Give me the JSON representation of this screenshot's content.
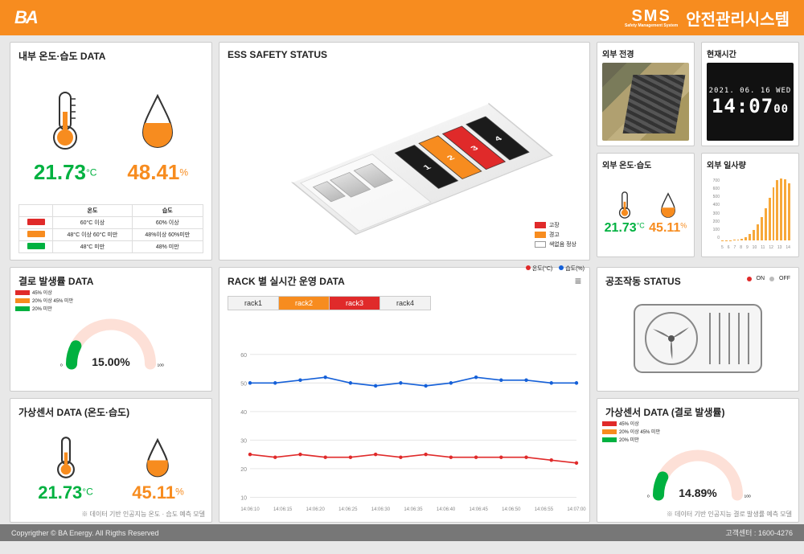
{
  "header": {
    "logo": "BA",
    "sms_big": "SMS",
    "sms_sub": "Safety Management System",
    "title": "안전관리시스템"
  },
  "footer": {
    "copyright": "Copyrigther © BA Energy. All Rigths Reserved",
    "contact_label": "고객센터 :",
    "contact_number": "1600-4276"
  },
  "palette": {
    "orange": "#f78c1f",
    "green": "#00b140",
    "red": "#e02a2a",
    "blue": "#1560d8",
    "black": "#1b1b1b",
    "grid": "#e6e6e6"
  },
  "temp_hum_panel": {
    "title": "내부 온도·습도 DATA",
    "temp_value": "21.73",
    "temp_unit": "°C",
    "hum_value": "48.41",
    "hum_unit": "%",
    "table": {
      "head_temp": "온도",
      "head_hum": "습도",
      "rows": [
        {
          "swatch": "#e02a2a",
          "temp": "60°C 이상",
          "hum": "60% 이상"
        },
        {
          "swatch": "#f78c1f",
          "temp": "48°C 이상 60°C 미만",
          "hum": "48%이상 60%미만"
        },
        {
          "swatch": "#00b140",
          "temp": "48°C 미만",
          "hum": "48% 미만"
        }
      ]
    }
  },
  "ess_panel": {
    "title": "ESS SAFETY STATUS",
    "racks": [
      {
        "n": "1",
        "color": "#1b1b1b"
      },
      {
        "n": "2",
        "color": "#f78c1f"
      },
      {
        "n": "3",
        "color": "#e02a2a"
      },
      {
        "n": "4",
        "color": "#1b1b1b"
      }
    ],
    "legend": [
      {
        "c": "#e02a2a",
        "t": "고장"
      },
      {
        "c": "#f78c1f",
        "t": "경고"
      },
      {
        "c": "#1b1b1b",
        "t": "정상",
        "prefix": "색없음"
      }
    ]
  },
  "right_top": {
    "ext_view_title": "외부 전경",
    "clock_title": "현재시간",
    "clock_date": "2021. 06. 16 WED",
    "clock_hhmm": "14:07",
    "clock_ss": "00",
    "ext_th_title": "외부 온도·습도",
    "ext_temp": "21.73",
    "ext_temp_unit": "°C",
    "ext_hum": "45.11",
    "ext_hum_unit": "%",
    "solar_title": "외부 일사량",
    "solar_yticks": [
      "700",
      "600",
      "500",
      "400",
      "300",
      "200",
      "100",
      "0"
    ],
    "solar_xticks": [
      "5",
      "6",
      "7",
      "8",
      "9",
      "10",
      "11",
      "12",
      "13",
      "14"
    ],
    "solar_values": [
      2,
      3,
      4,
      6,
      10,
      20,
      40,
      70,
      120,
      180,
      260,
      360,
      480,
      600,
      680,
      700,
      690,
      650
    ],
    "solar_color": "#f7a83a"
  },
  "dew_panel": {
    "title": "결로 발생률 DATA",
    "legend": [
      {
        "c": "#e02a2a",
        "t": "45% 이상"
      },
      {
        "c": "#f78c1f",
        "t": "20% 이상 45% 미만"
      },
      {
        "c": "#00b140",
        "t": "20% 미만"
      }
    ],
    "value": "15.00%",
    "gauge_pct": 15,
    "gauge_colors": {
      "empty": "#fde0d7",
      "low": "#00b140",
      "mid": "#f78c1f",
      "high": "#e02a2a"
    }
  },
  "vs_temp_panel": {
    "title": "가상센서 DATA (온도·습도)",
    "temp": "21.73",
    "temp_unit": "°C",
    "hum": "45.11",
    "hum_unit": "%",
    "note": "※ 데이터 기반 인공지능 온도 · 습도 예측 모델"
  },
  "rack_panel": {
    "title": "RACK 별 실시간 운영 DATA",
    "tabs": [
      {
        "label": "rack1",
        "bg": "#f2f2f2",
        "fg": "#333"
      },
      {
        "label": "rack2",
        "bg": "#f78c1f",
        "fg": "#fff"
      },
      {
        "label": "rack3",
        "bg": "#e02a2a",
        "fg": "#fff"
      },
      {
        "label": "rack4",
        "bg": "#f2f2f2",
        "fg": "#333"
      }
    ],
    "legend": [
      {
        "c": "#e02a2a",
        "t": "온도(°C)"
      },
      {
        "c": "#1560d8",
        "t": "습도(%)"
      }
    ],
    "ylim": [
      10,
      70
    ],
    "yticks": [
      10,
      20,
      30,
      40,
      50,
      60
    ],
    "xticks": [
      "14:06:10",
      "14:06:15",
      "14:06:20",
      "14:06:25",
      "14:06:30",
      "14:06:35",
      "14:06:40",
      "14:06:45",
      "14:06:50",
      "14:06:55",
      "14:07:00"
    ],
    "series_blue": [
      50,
      50,
      51,
      52,
      50,
      49,
      50,
      49,
      50,
      52,
      51,
      51,
      50,
      50
    ],
    "series_red": [
      25,
      24,
      25,
      24,
      24,
      25,
      24,
      25,
      24,
      24,
      24,
      24,
      23,
      22
    ]
  },
  "hvac_panel": {
    "title": "공조작동 STATUS",
    "on_label": "ON",
    "off_label": "OFF",
    "on_color": "#e02a2a",
    "off_color": "#bbbbbb",
    "state": "on"
  },
  "vs_dew_panel": {
    "title": "가상센서 DATA (결로 발생률)",
    "legend": [
      {
        "c": "#e02a2a",
        "t": "45% 이상"
      },
      {
        "c": "#f78c1f",
        "t": "20% 이상 45% 미만"
      },
      {
        "c": "#00b140",
        "t": "20% 미만"
      }
    ],
    "value": "14.89%",
    "gauge_pct": 14.89,
    "note": "※ 데이터 기반 인공지능 결로 발생률 예측 모델"
  }
}
